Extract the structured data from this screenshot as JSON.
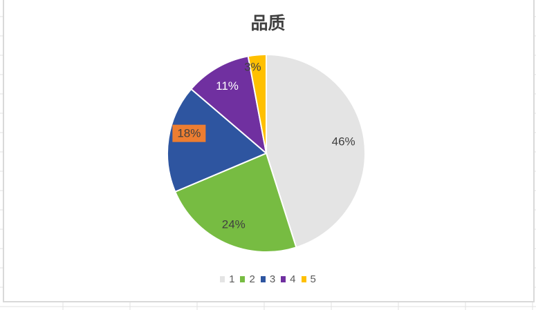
{
  "chart_data": {
    "type": "pie",
    "title": "品质",
    "categories": [
      "1",
      "2",
      "3",
      "4",
      "5"
    ],
    "values": [
      46,
      24,
      18,
      11,
      3
    ],
    "data_labels": [
      "46%",
      "24%",
      "18%",
      "11%",
      "3%"
    ],
    "colors": [
      "#e4e4e4",
      "#77bc42",
      "#2e55a0",
      "#7030a0",
      "#ffc000"
    ],
    "label_colors": [
      "#404040",
      "#404040",
      "#404040",
      "#ffffff",
      "#404040"
    ],
    "highlighted_label_background": "#ed7d31",
    "legend_position": "bottom"
  }
}
